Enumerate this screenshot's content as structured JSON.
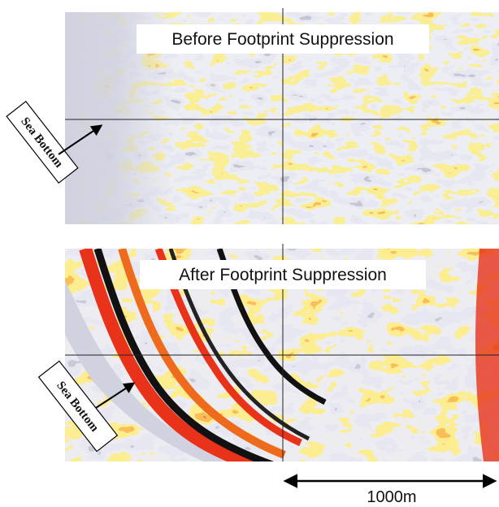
{
  "panels": [
    {
      "title": "Before Footprint Suppression",
      "annotation": "Sea Bottom"
    },
    {
      "title": "After Footprint Suppression",
      "annotation": "Sea Bottom"
    }
  ],
  "scale_bar": {
    "label": "1000m"
  }
}
